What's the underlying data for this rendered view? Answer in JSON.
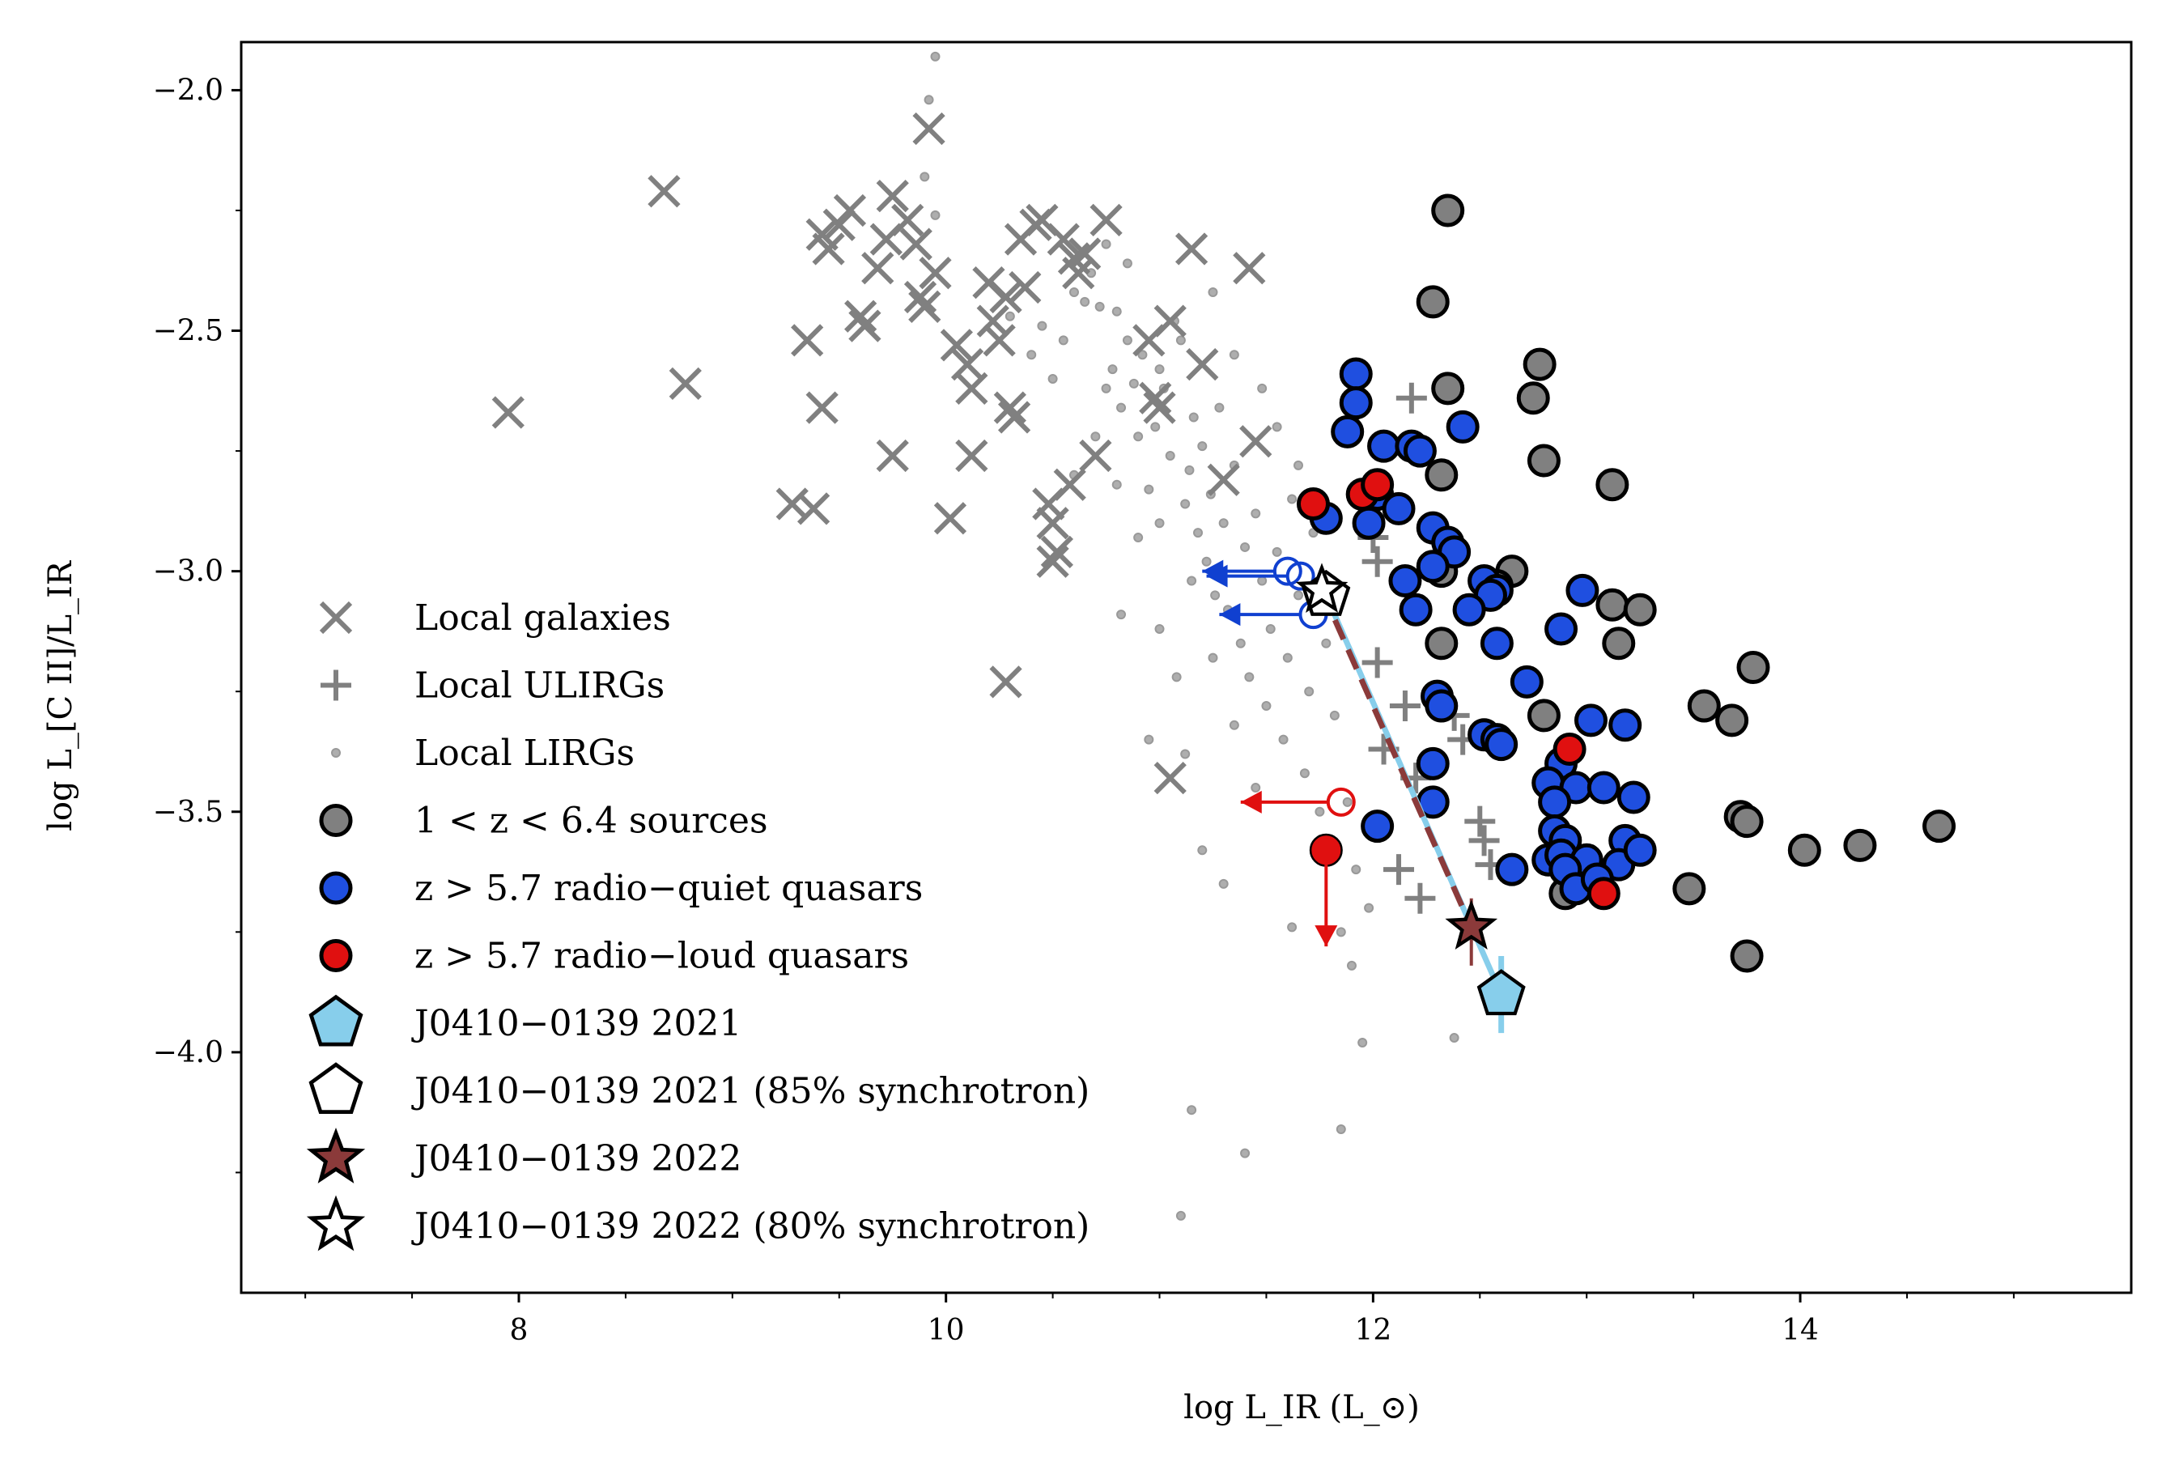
{
  "chart_data": {
    "type": "scatter",
    "xlabel": "log L_IR (L_⊙)",
    "ylabel": "log L_[C II]/L_IR",
    "xlim": [
      6.7,
      15.55
    ],
    "ylim": [
      -4.5,
      -1.9
    ],
    "xticks": [
      8,
      10,
      12,
      14
    ],
    "yticks": [
      -2.0,
      -2.5,
      -3.0,
      -3.5,
      -4.0
    ],
    "xtick_labels": [
      "8",
      "10",
      "12",
      "14"
    ],
    "ytick_labels": [
      "−2.0",
      "−2.5",
      "−3.0",
      "−3.5",
      "−4.0"
    ],
    "grid": false,
    "legend_position": "lower-left",
    "legend": [
      {
        "label": "Local galaxies",
        "marker": "x",
        "color": "#808080"
      },
      {
        "label": "Local ULIRGs",
        "marker": "plus",
        "color": "#808080"
      },
      {
        "label": "Local LIRGs",
        "marker": "dot",
        "color": "#a0a0a0"
      },
      {
        "label": "1 < z < 6.4 sources",
        "marker": "circle",
        "color": "#808080"
      },
      {
        "label": "z > 5.7 radio−quiet quasars",
        "marker": "circle",
        "color": "#1f4fe0"
      },
      {
        "label": "z > 5.7 radio−loud quasars",
        "marker": "circle",
        "color": "#e01010"
      },
      {
        "label": "J0410−0139 2021",
        "marker": "pentagon",
        "color": "#87ceeb"
      },
      {
        "label": "J0410−0139 2021 (85% synchrotron)",
        "marker": "pentagon-open",
        "color": "#ffffff"
      },
      {
        "label": "J0410−0139 2022",
        "marker": "star",
        "color": "#8b3a3a"
      },
      {
        "label": "J0410−0139 2022 (80% synchrotron)",
        "marker": "star-open",
        "color": "#ffffff"
      }
    ],
    "series": [
      {
        "name": "Local galaxies",
        "color": "#808080",
        "points": [
          [
            7.95,
            -2.67
          ],
          [
            8.68,
            -2.21
          ],
          [
            8.78,
            -2.61
          ],
          [
            9.28,
            -2.86
          ],
          [
            9.35,
            -2.52
          ],
          [
            9.38,
            -2.87
          ],
          [
            9.42,
            -2.66
          ],
          [
            9.42,
            -2.3
          ],
          [
            9.45,
            -2.33
          ],
          [
            9.5,
            -2.28
          ],
          [
            9.55,
            -2.25
          ],
          [
            9.6,
            -2.47
          ],
          [
            9.62,
            -2.49
          ],
          [
            9.68,
            -2.37
          ],
          [
            9.72,
            -2.31
          ],
          [
            9.75,
            -2.22
          ],
          [
            9.75,
            -2.76
          ],
          [
            9.82,
            -2.27
          ],
          [
            9.86,
            -2.32
          ],
          [
            9.88,
            -2.43
          ],
          [
            9.9,
            -2.45
          ],
          [
            9.92,
            -2.08
          ],
          [
            9.95,
            -2.38
          ],
          [
            10.02,
            -2.89
          ],
          [
            10.05,
            -2.53
          ],
          [
            10.1,
            -2.57
          ],
          [
            10.12,
            -2.62
          ],
          [
            10.12,
            -2.76
          ],
          [
            10.2,
            -2.4
          ],
          [
            10.22,
            -2.48
          ],
          [
            10.25,
            -2.52
          ],
          [
            10.28,
            -2.43
          ],
          [
            10.3,
            -2.66
          ],
          [
            10.32,
            -2.68
          ],
          [
            10.35,
            -2.31
          ],
          [
            10.37,
            -2.41
          ],
          [
            10.42,
            -2.28
          ],
          [
            10.45,
            -2.27
          ],
          [
            10.48,
            -2.86
          ],
          [
            10.5,
            -2.9
          ],
          [
            10.52,
            -2.96
          ],
          [
            10.55,
            -2.31
          ],
          [
            10.58,
            -2.82
          ],
          [
            10.6,
            -2.35
          ],
          [
            10.62,
            -2.38
          ],
          [
            10.65,
            -2.34
          ],
          [
            10.7,
            -2.76
          ],
          [
            10.75,
            -2.27
          ],
          [
            10.95,
            -2.52
          ],
          [
            10.98,
            -2.64
          ],
          [
            11.0,
            -2.66
          ],
          [
            11.05,
            -2.48
          ],
          [
            11.15,
            -2.33
          ],
          [
            11.2,
            -2.57
          ],
          [
            11.3,
            -2.81
          ],
          [
            11.42,
            -2.37
          ],
          [
            11.45,
            -2.73
          ],
          [
            10.28,
            -3.23
          ],
          [
            11.05,
            -3.43
          ],
          [
            10.5,
            -2.98
          ]
        ]
      },
      {
        "name": "Local ULIRGs",
        "color": "#808080",
        "points": [
          [
            12.18,
            -2.64
          ],
          [
            12.0,
            -2.93
          ],
          [
            12.02,
            -2.98
          ],
          [
            12.02,
            -3.19
          ],
          [
            12.15,
            -3.28
          ],
          [
            12.2,
            -3.43
          ],
          [
            12.38,
            -3.3
          ],
          [
            12.42,
            -3.35
          ],
          [
            12.5,
            -3.52
          ],
          [
            12.52,
            -3.56
          ],
          [
            12.55,
            -3.61
          ],
          [
            12.12,
            -3.62
          ],
          [
            12.22,
            -3.68
          ],
          [
            12.05,
            -3.37
          ]
        ]
      },
      {
        "name": "Local LIRGs",
        "color": "#a0a0a0",
        "points": [
          [
            9.95,
            -1.93
          ],
          [
            9.92,
            -2.02
          ],
          [
            9.9,
            -2.18
          ],
          [
            9.95,
            -2.26
          ],
          [
            10.3,
            -2.47
          ],
          [
            10.45,
            -2.49
          ],
          [
            10.55,
            -2.52
          ],
          [
            10.6,
            -2.42
          ],
          [
            10.65,
            -2.44
          ],
          [
            10.68,
            -2.38
          ],
          [
            10.72,
            -2.45
          ],
          [
            10.75,
            -2.62
          ],
          [
            10.78,
            -2.58
          ],
          [
            10.8,
            -2.46
          ],
          [
            10.82,
            -2.66
          ],
          [
            10.85,
            -2.52
          ],
          [
            10.88,
            -2.61
          ],
          [
            10.9,
            -2.72
          ],
          [
            10.92,
            -2.55
          ],
          [
            10.95,
            -2.83
          ],
          [
            10.98,
            -2.7
          ],
          [
            11.0,
            -2.58
          ],
          [
            11.02,
            -2.62
          ],
          [
            11.05,
            -2.76
          ],
          [
            11.07,
            -2.48
          ],
          [
            11.1,
            -2.52
          ],
          [
            11.12,
            -2.86
          ],
          [
            11.14,
            -2.79
          ],
          [
            11.16,
            -2.68
          ],
          [
            11.18,
            -2.92
          ],
          [
            11.2,
            -2.74
          ],
          [
            11.22,
            -2.98
          ],
          [
            11.24,
            -2.84
          ],
          [
            11.26,
            -3.05
          ],
          [
            11.28,
            -2.66
          ],
          [
            11.3,
            -2.9
          ],
          [
            11.32,
            -3.08
          ],
          [
            11.35,
            -2.78
          ],
          [
            11.38,
            -3.15
          ],
          [
            11.4,
            -2.95
          ],
          [
            11.42,
            -3.22
          ],
          [
            11.45,
            -2.88
          ],
          [
            11.48,
            -3.02
          ],
          [
            11.5,
            -3.28
          ],
          [
            11.52,
            -3.12
          ],
          [
            11.55,
            -2.96
          ],
          [
            11.58,
            -3.35
          ],
          [
            11.6,
            -3.18
          ],
          [
            11.62,
            -2.85
          ],
          [
            11.65,
            -3.05
          ],
          [
            11.68,
            -3.42
          ],
          [
            11.7,
            -3.25
          ],
          [
            11.72,
            -2.92
          ],
          [
            11.75,
            -3.5
          ],
          [
            11.78,
            -3.15
          ],
          [
            11.8,
            -3.6
          ],
          [
            11.82,
            -3.3
          ],
          [
            11.85,
            -3.75
          ],
          [
            11.88,
            -3.48
          ],
          [
            11.9,
            -3.82
          ],
          [
            11.92,
            -3.62
          ],
          [
            11.95,
            -3.98
          ],
          [
            11.98,
            -3.7
          ],
          [
            11.2,
            -3.58
          ],
          [
            11.3,
            -3.65
          ],
          [
            11.62,
            -3.74
          ],
          [
            11.85,
            -4.16
          ],
          [
            11.15,
            -4.12
          ],
          [
            11.4,
            -4.21
          ],
          [
            12.38,
            -3.97
          ],
          [
            11.1,
            -4.34
          ],
          [
            10.82,
            -3.09
          ],
          [
            10.9,
            -2.93
          ],
          [
            11.0,
            -3.12
          ],
          [
            11.08,
            -3.22
          ],
          [
            11.12,
            -3.38
          ],
          [
            10.95,
            -3.35
          ],
          [
            10.7,
            -2.72
          ],
          [
            10.6,
            -2.8
          ],
          [
            10.8,
            -2.82
          ],
          [
            11.0,
            -2.9
          ],
          [
            11.15,
            -3.02
          ],
          [
            11.25,
            -3.18
          ],
          [
            11.35,
            -3.32
          ],
          [
            11.45,
            -3.45
          ],
          [
            10.4,
            -2.55
          ],
          [
            10.5,
            -2.6
          ],
          [
            10.75,
            -2.32
          ],
          [
            10.85,
            -2.36
          ],
          [
            11.25,
            -2.42
          ],
          [
            11.35,
            -2.55
          ],
          [
            11.48,
            -2.62
          ],
          [
            11.55,
            -2.7
          ],
          [
            11.65,
            -2.78
          ],
          [
            11.78,
            -2.88
          ]
        ]
      },
      {
        "name": "1 < z < 6.4 sources",
        "color": "#808080",
        "points": [
          [
            12.35,
            -2.25
          ],
          [
            12.28,
            -2.44
          ],
          [
            12.35,
            -2.62
          ],
          [
            12.78,
            -2.57
          ],
          [
            12.75,
            -2.64
          ],
          [
            12.8,
            -2.77
          ],
          [
            12.32,
            -2.8
          ],
          [
            13.12,
            -2.82
          ],
          [
            12.32,
            -3.0
          ],
          [
            12.65,
            -3.0
          ],
          [
            12.58,
            -3.03
          ],
          [
            13.12,
            -3.07
          ],
          [
            13.25,
            -3.08
          ],
          [
            13.15,
            -3.15
          ],
          [
            12.32,
            -3.15
          ],
          [
            12.8,
            -3.3
          ],
          [
            13.78,
            -3.2
          ],
          [
            13.55,
            -3.28
          ],
          [
            13.68,
            -3.31
          ],
          [
            13.72,
            -3.51
          ],
          [
            13.75,
            -3.52
          ],
          [
            14.02,
            -3.58
          ],
          [
            14.28,
            -3.57
          ],
          [
            14.65,
            -3.53
          ],
          [
            13.48,
            -3.66
          ],
          [
            13.75,
            -3.8
          ],
          [
            12.9,
            -3.67
          ]
        ]
      },
      {
        "name": "z > 5.7 radio−quiet quasars",
        "color": "#1f4fe0",
        "points": [
          [
            11.92,
            -2.59
          ],
          [
            11.92,
            -2.65
          ],
          [
            11.88,
            -2.71
          ],
          [
            12.05,
            -2.74
          ],
          [
            12.18,
            -2.74
          ],
          [
            12.22,
            -2.75
          ],
          [
            12.42,
            -2.7
          ],
          [
            11.78,
            -2.89
          ],
          [
            11.98,
            -2.9
          ],
          [
            12.02,
            -2.84
          ],
          [
            12.12,
            -2.87
          ],
          [
            12.28,
            -2.91
          ],
          [
            12.35,
            -2.94
          ],
          [
            12.38,
            -2.96
          ],
          [
            12.15,
            -3.02
          ],
          [
            12.28,
            -2.99
          ],
          [
            12.52,
            -3.02
          ],
          [
            12.58,
            -3.04
          ],
          [
            12.55,
            -3.05
          ],
          [
            12.2,
            -3.08
          ],
          [
            12.45,
            -3.08
          ],
          [
            12.88,
            -3.12
          ],
          [
            12.98,
            -3.04
          ],
          [
            12.58,
            -3.15
          ],
          [
            12.72,
            -3.23
          ],
          [
            12.3,
            -3.26
          ],
          [
            12.32,
            -3.28
          ],
          [
            12.52,
            -3.34
          ],
          [
            12.58,
            -3.35
          ],
          [
            12.6,
            -3.36
          ],
          [
            13.02,
            -3.31
          ],
          [
            13.18,
            -3.32
          ],
          [
            12.28,
            -3.4
          ],
          [
            12.88,
            -3.4
          ],
          [
            12.82,
            -3.44
          ],
          [
            12.95,
            -3.45
          ],
          [
            13.08,
            -3.45
          ],
          [
            13.22,
            -3.47
          ],
          [
            12.28,
            -3.48
          ],
          [
            12.85,
            -3.48
          ],
          [
            12.02,
            -3.53
          ],
          [
            12.85,
            -3.54
          ],
          [
            12.9,
            -3.56
          ],
          [
            13.18,
            -3.56
          ],
          [
            12.82,
            -3.6
          ],
          [
            12.88,
            -3.59
          ],
          [
            13.0,
            -3.6
          ],
          [
            13.15,
            -3.61
          ],
          [
            13.25,
            -3.58
          ],
          [
            12.9,
            -3.62
          ],
          [
            12.95,
            -3.66
          ],
          [
            13.05,
            -3.64
          ],
          [
            12.65,
            -3.62
          ]
        ]
      },
      {
        "name": "z > 5.7 radio−loud quasars",
        "color": "#e01010",
        "points": [
          [
            11.72,
            -2.86
          ],
          [
            11.95,
            -2.84
          ],
          [
            12.02,
            -2.82
          ],
          [
            12.92,
            -3.37
          ],
          [
            13.08,
            -3.67
          ],
          [
            11.78,
            -3.58
          ]
        ]
      },
      {
        "name": "J0410−0139 2021",
        "color": "#87ceeb",
        "points": [
          [
            12.6,
            -3.88
          ]
        ]
      },
      {
        "name": "J0410−0139 2021 (85% synchrotron)",
        "color": "#ffffff",
        "points": [
          [
            11.78,
            -3.05
          ]
        ]
      },
      {
        "name": "J0410−0139 2022",
        "color": "#8b3a3a",
        "points": [
          [
            12.46,
            -3.74
          ]
        ]
      },
      {
        "name": "J0410−0139 2022 (80% synchrotron)",
        "color": "#ffffff",
        "points": [
          [
            11.76,
            -3.04
          ]
        ]
      }
    ],
    "upper_limits": [
      {
        "color": "#1040d0",
        "x": 11.6,
        "y": -3.0,
        "direction": "left",
        "to_x": 11.2
      },
      {
        "color": "#1040d0",
        "x": 11.66,
        "y": -3.01,
        "direction": "left",
        "to_x": 11.22
      },
      {
        "color": "#1040d0",
        "x": 11.72,
        "y": -3.09,
        "direction": "left",
        "to_x": 11.28
      },
      {
        "color": "#e01010",
        "x": 11.85,
        "y": -3.48,
        "direction": "left",
        "to_x": 11.38
      },
      {
        "color": "#e01010",
        "x": 11.78,
        "y": -3.58,
        "direction": "down",
        "to_y": -3.78
      }
    ],
    "connectors": [
      {
        "from": [
          11.78,
          -3.05
        ],
        "to": [
          12.6,
          -3.88
        ],
        "color": "#87ceeb",
        "style": "solid"
      },
      {
        "from": [
          11.76,
          -3.04
        ],
        "to": [
          12.46,
          -3.74
        ],
        "color": "#8b3a3a",
        "style": "dashed"
      }
    ]
  }
}
